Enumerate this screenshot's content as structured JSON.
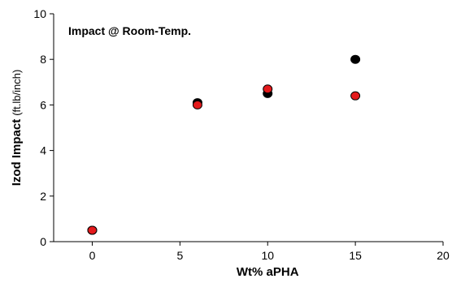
{
  "chart_data": {
    "type": "scatter",
    "title": "Impact @ Room-Temp.",
    "xlabel": "Wt% aPHA",
    "ylabel": "Izod Impact",
    "ylabel_unit": "(ft.lb/inch)",
    "xlim": [
      -2.2,
      20
    ],
    "ylim": [
      0,
      10
    ],
    "xticks": [
      0,
      5,
      10,
      15,
      20
    ],
    "yticks": [
      0,
      2,
      4,
      6,
      8,
      10
    ],
    "grid": false,
    "series": [
      {
        "color": "#000000",
        "points": [
          {
            "x": 0,
            "y": 0.5
          },
          {
            "x": 6,
            "y": 6.1
          },
          {
            "x": 10,
            "y": 6.5
          },
          {
            "x": 15,
            "y": 8.0
          }
        ]
      },
      {
        "color": "#e41a1c",
        "points": [
          {
            "x": 0,
            "y": 0.5
          },
          {
            "x": 6,
            "y": 6.0
          },
          {
            "x": 10,
            "y": 6.7
          },
          {
            "x": 15,
            "y": 6.4
          }
        ]
      }
    ]
  }
}
